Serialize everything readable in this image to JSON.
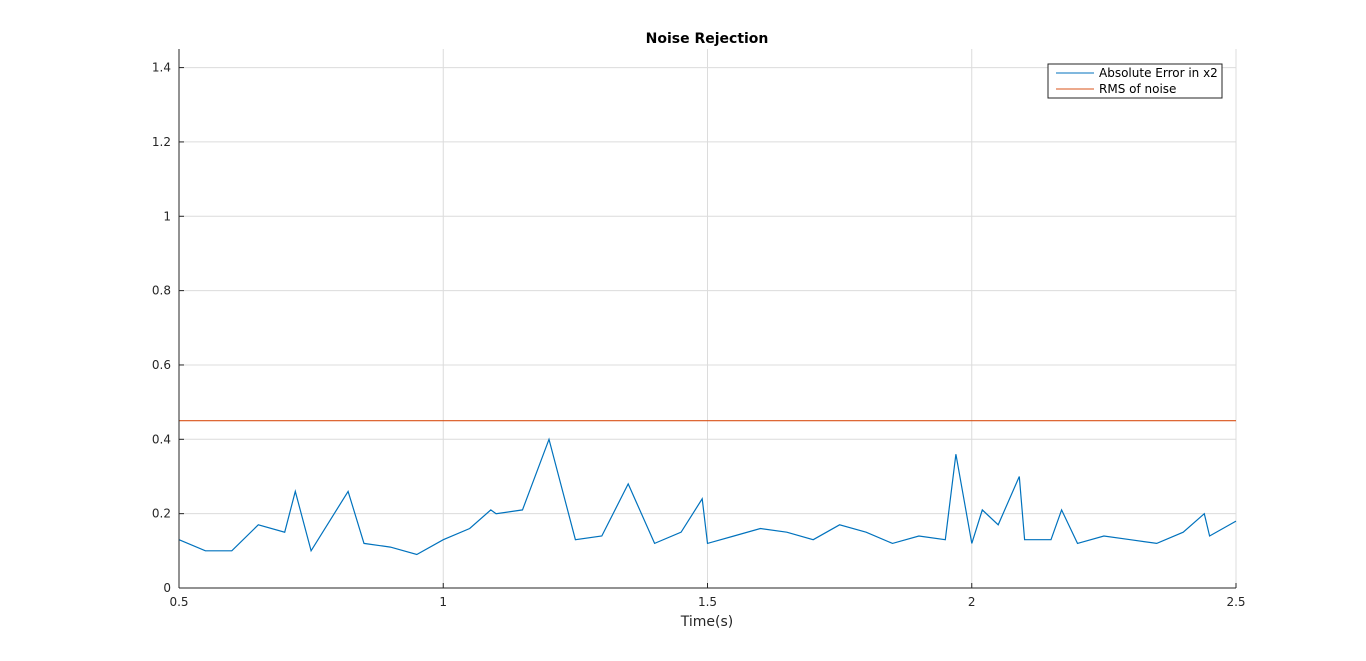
{
  "chart_data": {
    "type": "line",
    "title": "Noise Rejection",
    "xlabel": "Time(s)",
    "ylabel": "",
    "xlim": [
      0.5,
      2.5
    ],
    "ylim": [
      0,
      1.45
    ],
    "xticks": [
      0.5,
      1,
      1.5,
      2,
      2.5
    ],
    "xtick_labels": [
      "0.5",
      "1",
      "1.5",
      "2",
      "2.5"
    ],
    "yticks": [
      0,
      0.2,
      0.4,
      0.6,
      0.8,
      1,
      1.2,
      1.4
    ],
    "ytick_labels": [
      "0",
      "0.2",
      "0.4",
      "0.6",
      "0.8",
      "1",
      "1.2",
      "1.4"
    ],
    "grid": true,
    "legend_position": "top-right",
    "series": [
      {
        "name": "Absolute Error in x2",
        "color": "#0072BD",
        "x": [
          0.5,
          0.55,
          0.6,
          0.65,
          0.7,
          0.72,
          0.75,
          0.82,
          0.85,
          0.9,
          0.95,
          1.0,
          1.05,
          1.09,
          1.1,
          1.15,
          1.2,
          1.25,
          1.3,
          1.35,
          1.4,
          1.45,
          1.49,
          1.5,
          1.55,
          1.6,
          1.65,
          1.7,
          1.75,
          1.8,
          1.85,
          1.9,
          1.95,
          1.97,
          2.0,
          2.02,
          2.05,
          2.09,
          2.1,
          2.15,
          2.17,
          2.2,
          2.25,
          2.3,
          2.35,
          2.4,
          2.44,
          2.45,
          2.5
        ],
        "values": [
          0.13,
          0.1,
          0.1,
          0.17,
          0.15,
          0.26,
          0.1,
          0.26,
          0.12,
          0.11,
          0.09,
          0.13,
          0.16,
          0.21,
          0.2,
          0.21,
          0.4,
          0.13,
          0.14,
          0.28,
          0.12,
          0.15,
          0.24,
          0.12,
          0.14,
          0.16,
          0.15,
          0.13,
          0.17,
          0.15,
          0.12,
          0.14,
          0.13,
          0.36,
          0.12,
          0.21,
          0.17,
          0.3,
          0.13,
          0.13,
          0.21,
          0.12,
          0.14,
          0.13,
          0.12,
          0.15,
          0.2,
          0.14,
          0.18
        ]
      },
      {
        "name": "RMS of noise",
        "color": "#D95319",
        "x": [
          0.5,
          2.5
        ],
        "values": [
          0.45,
          0.45
        ]
      }
    ]
  }
}
